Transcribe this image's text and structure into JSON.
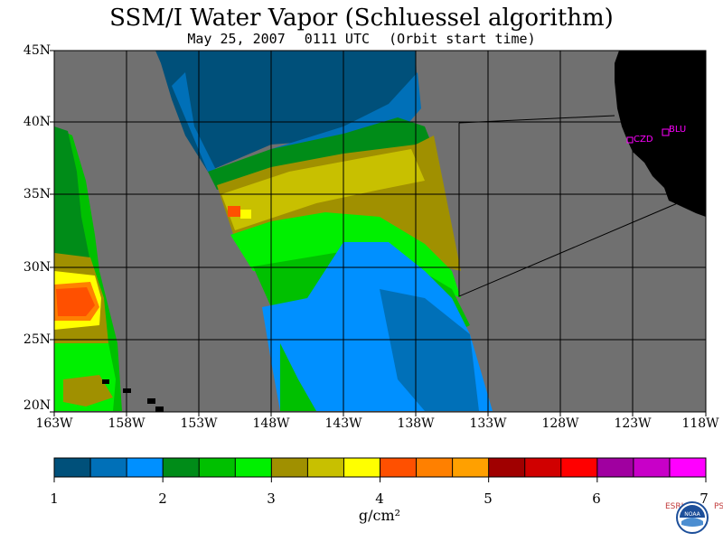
{
  "title": "SSM/I Water Vapor (Schluessel algorithm)",
  "subtitle": {
    "date": "May 25, 2007",
    "time": "0111 UTC",
    "note": "(Orbit start time)"
  },
  "map": {
    "lat_labels": [
      "45N",
      "40N",
      "35N",
      "30N",
      "25N",
      "20N"
    ],
    "lon_labels": [
      "163W",
      "158W",
      "153W",
      "148W",
      "143W",
      "138W",
      "133W",
      "128W",
      "123W",
      "118W"
    ],
    "stations": [
      {
        "name": "CZD"
      },
      {
        "name": "BLU"
      }
    ],
    "colors": {
      "no_data": "#707070",
      "land": "#000000",
      "station": "#ff00ff",
      "grid": "#000000"
    }
  },
  "colorbar": {
    "colors": [
      "#00507a",
      "#0070b8",
      "#0090ff",
      "#008c18",
      "#00c000",
      "#00f000",
      "#a09000",
      "#c8c000",
      "#ffff00",
      "#ff5000",
      "#ff8000",
      "#ffa000",
      "#a00000",
      "#d00000",
      "#ff0000",
      "#a000a0",
      "#c800c8",
      "#ff00ff"
    ],
    "tick_labels": [
      "1",
      "2",
      "3",
      "4",
      "5",
      "6",
      "7"
    ],
    "units": "g/cm²"
  },
  "logo": {
    "left_text": "ESRL",
    "right_text": "PSD",
    "seal_text": "NOAA"
  }
}
